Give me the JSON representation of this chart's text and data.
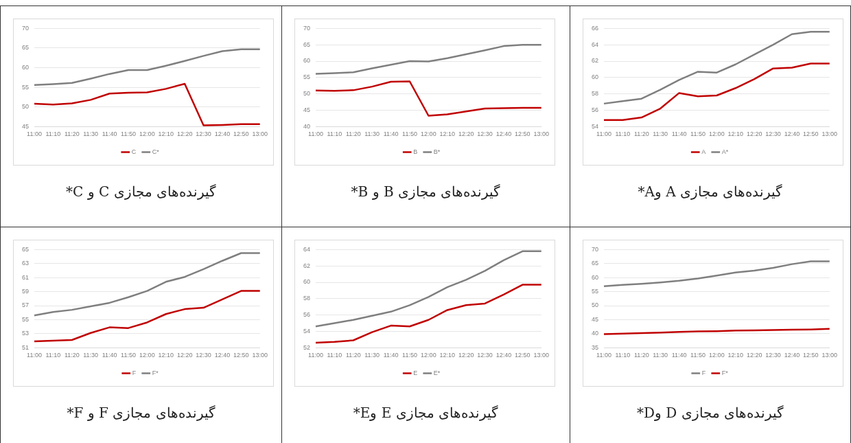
{
  "chart_data": [
    {
      "type": "line",
      "title": "گیرنده‌های مجازی C و C*",
      "categories": [
        "11:00",
        "11:10",
        "11:20",
        "11:30",
        "11:40",
        "11:50",
        "12:00",
        "12:10",
        "12:20",
        "12:30",
        "12:40",
        "12:50",
        "13:00"
      ],
      "series": [
        {
          "name": "C",
          "color": "#c00000",
          "values": [
            50.8,
            50.6,
            50.9,
            51.8,
            53.4,
            53.6,
            53.7,
            54.6,
            55.9,
            45.3,
            45.4,
            45.6,
            45.6
          ]
        },
        {
          "name": "C*",
          "color": "#7f7f7f",
          "values": [
            55.6,
            55.8,
            56.1,
            57.2,
            58.4,
            59.4,
            59.4,
            60.5,
            61.7,
            63.0,
            64.2,
            64.7,
            64.7
          ]
        }
      ],
      "ylim": [
        45,
        70
      ],
      "yticks": [
        45,
        50,
        55,
        60,
        65,
        70
      ],
      "grid": "y",
      "legend": "bottom"
    },
    {
      "type": "line",
      "title": "گیرنده‌های مجازی B و B*",
      "categories": [
        "11:00",
        "11:10",
        "11:20",
        "11:30",
        "11:40",
        "11:50",
        "12:00",
        "12:10",
        "12:20",
        "12:30",
        "12:40",
        "12:50",
        "13:00"
      ],
      "series": [
        {
          "name": "B",
          "color": "#c00000",
          "values": [
            51.0,
            50.9,
            51.1,
            52.2,
            53.7,
            53.8,
            43.3,
            43.7,
            44.6,
            45.5,
            45.6,
            45.7,
            45.7
          ]
        },
        {
          "name": "B*",
          "color": "#7f7f7f",
          "values": [
            56.1,
            56.3,
            56.6,
            57.8,
            58.9,
            60.0,
            59.9,
            60.9,
            62.1,
            63.3,
            64.6,
            65.0,
            65.0
          ]
        }
      ],
      "ylim": [
        40,
        70
      ],
      "yticks": [
        40,
        45,
        50,
        55,
        60,
        65,
        70
      ],
      "grid": "y",
      "legend": "bottom"
    },
    {
      "type": "line",
      "title": "گیرنده‌های مجازی A وA*",
      "categories": [
        "11:00",
        "11:10",
        "11:20",
        "11:30",
        "11:40",
        "11:50",
        "12:00",
        "12:10",
        "12:20",
        "12:30",
        "12:40",
        "12:50",
        "13:00"
      ],
      "series": [
        {
          "name": "A",
          "color": "#c00000",
          "values": [
            54.8,
            54.8,
            55.1,
            56.2,
            58.1,
            57.7,
            57.8,
            58.7,
            59.8,
            61.1,
            61.2,
            61.7,
            61.7
          ]
        },
        {
          "name": "A*",
          "color": "#7f7f7f",
          "values": [
            56.8,
            57.1,
            57.4,
            58.5,
            59.7,
            60.7,
            60.6,
            61.6,
            62.8,
            64.0,
            65.3,
            65.6,
            65.6
          ]
        }
      ],
      "ylim": [
        54,
        66
      ],
      "yticks": [
        54,
        56,
        58,
        60,
        62,
        64,
        66
      ],
      "grid": "y",
      "legend": "bottom"
    },
    {
      "type": "line",
      "title": "گیرنده‌های مجازی F و F*",
      "categories": [
        "11:00",
        "11:10",
        "11:20",
        "11:30",
        "11:40",
        "11:50",
        "12:00",
        "12:10",
        "12:20",
        "12:30",
        "12:40",
        "12:50",
        "13:00"
      ],
      "series": [
        {
          "name": "F",
          "color": "#c00000",
          "values": [
            51.9,
            52.0,
            52.1,
            53.1,
            53.9,
            53.8,
            54.6,
            55.8,
            56.5,
            56.7,
            57.9,
            59.1,
            59.1
          ]
        },
        {
          "name": "F*",
          "color": "#7f7f7f",
          "values": [
            55.6,
            56.1,
            56.4,
            56.9,
            57.4,
            58.2,
            59.1,
            60.4,
            61.1,
            62.2,
            63.4,
            64.5,
            64.5
          ]
        }
      ],
      "ylim": [
        51,
        65
      ],
      "yticks": [
        51,
        53,
        55,
        57,
        59,
        61,
        63,
        65
      ],
      "grid": "y",
      "legend": "bottom"
    },
    {
      "type": "line",
      "title": "گیرنده‌های مجازی E وE*",
      "categories": [
        "11:00",
        "11:10",
        "11:20",
        "11:30",
        "11:40",
        "11:50",
        "12:00",
        "12:10",
        "12:20",
        "12:30",
        "12:40",
        "12:50",
        "13:00"
      ],
      "series": [
        {
          "name": "E",
          "color": "#c00000",
          "values": [
            52.6,
            52.7,
            52.9,
            53.9,
            54.7,
            54.6,
            55.4,
            56.6,
            57.2,
            57.4,
            58.5,
            59.7,
            59.7
          ]
        },
        {
          "name": "E*",
          "color": "#7f7f7f",
          "values": [
            54.6,
            55.0,
            55.4,
            55.9,
            56.4,
            57.2,
            58.2,
            59.4,
            60.3,
            61.4,
            62.7,
            63.8,
            63.8
          ]
        }
      ],
      "ylim": [
        52,
        64
      ],
      "yticks": [
        52,
        54,
        56,
        58,
        60,
        62,
        64
      ],
      "grid": "y",
      "legend": "bottom"
    },
    {
      "type": "line",
      "title": "گیرنده‌های مجازی D وD*",
      "categories": [
        "11:00",
        "11:10",
        "11:20",
        "11:30",
        "11:40",
        "11:50",
        "12:00",
        "12:10",
        "12:20",
        "12:30",
        "12:40",
        "12:50",
        "13:00"
      ],
      "series": [
        {
          "name": "F",
          "color": "#7f7f7f",
          "values": [
            56.9,
            57.4,
            57.8,
            58.3,
            58.9,
            59.7,
            60.7,
            61.8,
            62.5,
            63.5,
            64.8,
            65.8,
            65.8
          ]
        },
        {
          "name": "F*",
          "color": "#c00000",
          "values": [
            39.8,
            40.0,
            40.2,
            40.4,
            40.6,
            40.8,
            40.9,
            41.1,
            41.2,
            41.3,
            41.4,
            41.5,
            41.7
          ]
        }
      ],
      "ylim": [
        35,
        70
      ],
      "yticks": [
        35,
        40,
        45,
        50,
        55,
        60,
        65,
        70
      ],
      "grid": "y",
      "legend": "bottom"
    }
  ]
}
